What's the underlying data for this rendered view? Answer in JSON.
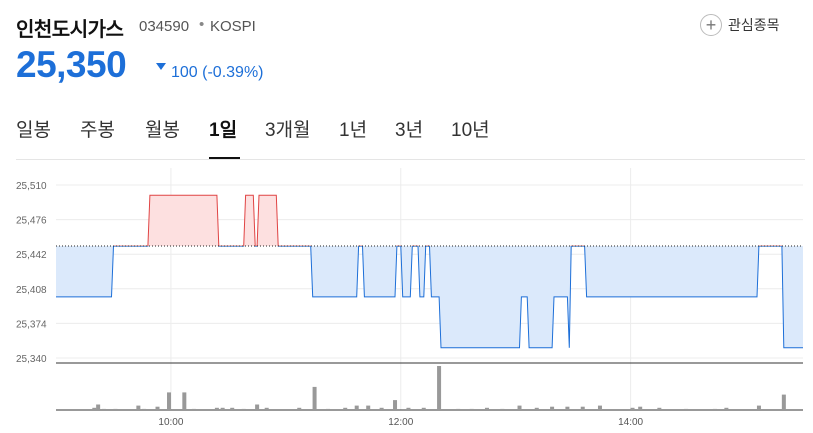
{
  "stock": {
    "name": "인천도시가스",
    "code": "034590",
    "separator": "•",
    "market": "KOSPI",
    "price": "25,350",
    "change": "100 (-0.39%)",
    "change_color": "#1d6fd8"
  },
  "actions": {
    "favorite_label": "관심종목",
    "favorite_icon": "plus-icon",
    "more_icon": "kebab-menu-icon"
  },
  "tabs": [
    {
      "label": "일봉",
      "active": false
    },
    {
      "label": "주봉",
      "active": false
    },
    {
      "label": "월봉",
      "active": false
    },
    {
      "label": "1일",
      "active": true
    },
    {
      "label": "3개월",
      "active": false
    },
    {
      "label": "1년",
      "active": false
    },
    {
      "label": "3년",
      "active": false
    },
    {
      "label": "10년",
      "active": false
    }
  ],
  "chart_data": {
    "type": "line",
    "baseline": 25450,
    "y_ticks": [
      "25,510",
      "25,476",
      "25,442",
      "25,408",
      "25,374",
      "25,340"
    ],
    "ylim": [
      25340,
      25510
    ],
    "x_ticks": [
      "10:00",
      "12:00",
      "14:00"
    ],
    "up_color": "#e04444",
    "down_color": "#1d6fd8",
    "price_series": [
      [
        "09:00",
        25400
      ],
      [
        "09:29",
        25400
      ],
      [
        "09:30",
        25450
      ],
      [
        "09:48",
        25450
      ],
      [
        "09:49",
        25500
      ],
      [
        "10:24",
        25500
      ],
      [
        "10:25",
        25450
      ],
      [
        "10:38",
        25450
      ],
      [
        "10:39",
        25500
      ],
      [
        "10:43",
        25500
      ],
      [
        "10:44",
        25450
      ],
      [
        "10:45",
        25450
      ],
      [
        "10:46",
        25500
      ],
      [
        "10:55",
        25500
      ],
      [
        "10:56",
        25450
      ],
      [
        "11:13",
        25450
      ],
      [
        "11:14",
        25400
      ],
      [
        "11:37",
        25400
      ],
      [
        "11:38",
        25450
      ],
      [
        "11:40",
        25450
      ],
      [
        "11:41",
        25400
      ],
      [
        "11:57",
        25400
      ],
      [
        "11:58",
        25450
      ],
      [
        "12:00",
        25450
      ],
      [
        "12:01",
        25400
      ],
      [
        "12:05",
        25400
      ],
      [
        "12:06",
        25450
      ],
      [
        "12:09",
        25450
      ],
      [
        "12:10",
        25400
      ],
      [
        "12:12",
        25400
      ],
      [
        "12:13",
        25450
      ],
      [
        "12:15",
        25450
      ],
      [
        "12:16",
        25400
      ],
      [
        "12:20",
        25400
      ],
      [
        "12:21",
        25350
      ],
      [
        "13:02",
        25350
      ],
      [
        "13:03",
        25400
      ],
      [
        "13:06",
        25400
      ],
      [
        "13:07",
        25350
      ],
      [
        "13:19",
        25350
      ],
      [
        "13:20",
        25400
      ],
      [
        "13:27",
        25400
      ],
      [
        "13:28",
        25350
      ],
      [
        "13:29",
        25450
      ],
      [
        "13:36",
        25450
      ],
      [
        "13:37",
        25400
      ],
      [
        "15:06",
        25400
      ],
      [
        "15:07",
        25450
      ],
      [
        "15:19",
        25450
      ],
      [
        "15:20",
        25350
      ],
      [
        "15:30",
        25350
      ]
    ],
    "volume_series": [
      [
        "09:20",
        2
      ],
      [
        "09:22",
        5
      ],
      [
        "09:25",
        1
      ],
      [
        "09:31",
        1
      ],
      [
        "09:43",
        4
      ],
      [
        "09:46",
        1
      ],
      [
        "09:53",
        3
      ],
      [
        "09:59",
        16
      ],
      [
        "10:07",
        16
      ],
      [
        "10:12",
        1
      ],
      [
        "10:24",
        2
      ],
      [
        "10:27",
        2
      ],
      [
        "10:32",
        2
      ],
      [
        "10:38",
        1
      ],
      [
        "10:45",
        5
      ],
      [
        "10:50",
        2
      ],
      [
        "11:07",
        2
      ],
      [
        "11:15",
        21
      ],
      [
        "11:22",
        1
      ],
      [
        "11:31",
        2
      ],
      [
        "11:37",
        4
      ],
      [
        "11:43",
        4
      ],
      [
        "11:50",
        2
      ],
      [
        "11:57",
        9
      ],
      [
        "12:04",
        2
      ],
      [
        "12:12",
        2
      ],
      [
        "12:20",
        40
      ],
      [
        "12:30",
        1
      ],
      [
        "12:37",
        1
      ],
      [
        "12:45",
        2
      ],
      [
        "12:53",
        1
      ],
      [
        "13:02",
        4
      ],
      [
        "13:11",
        2
      ],
      [
        "13:19",
        3
      ],
      [
        "13:27",
        3
      ],
      [
        "13:35",
        3
      ],
      [
        "13:44",
        4
      ],
      [
        "14:01",
        2
      ],
      [
        "14:05",
        3
      ],
      [
        "14:15",
        2
      ],
      [
        "14:29",
        1
      ],
      [
        "14:44",
        1
      ],
      [
        "14:50",
        2
      ],
      [
        "15:07",
        4
      ],
      [
        "15:20",
        14
      ]
    ]
  }
}
